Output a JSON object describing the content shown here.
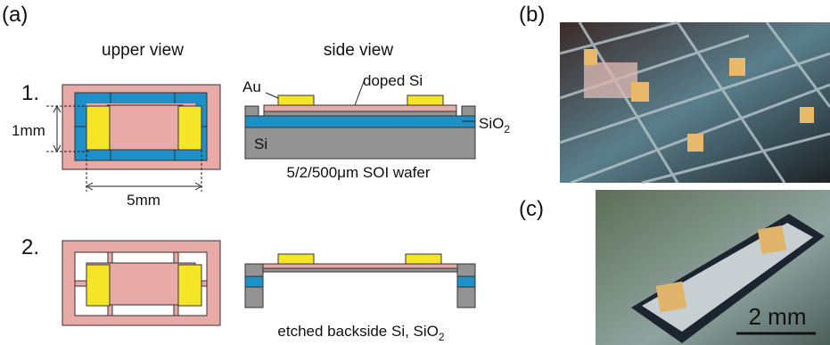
{
  "panel_a": {
    "label": "(a)",
    "upper_view": "upper view",
    "side_view": "side view",
    "step1": {
      "number": "1.",
      "dim_height": "1mm",
      "dim_width": "5mm",
      "au": "Au",
      "doped_si": "doped Si",
      "sio2": {
        "main": "SiO",
        "sub": "2"
      },
      "si": "Si",
      "wafer": "5/2/500μm SOI wafer"
    },
    "step2": {
      "number": "2.",
      "caption": {
        "main": "etched backside Si, SiO",
        "sub": "2"
      }
    }
  },
  "panel_b": {
    "label": "(b)"
  },
  "panel_c": {
    "label": "(c)",
    "scale": "2 mm"
  }
}
